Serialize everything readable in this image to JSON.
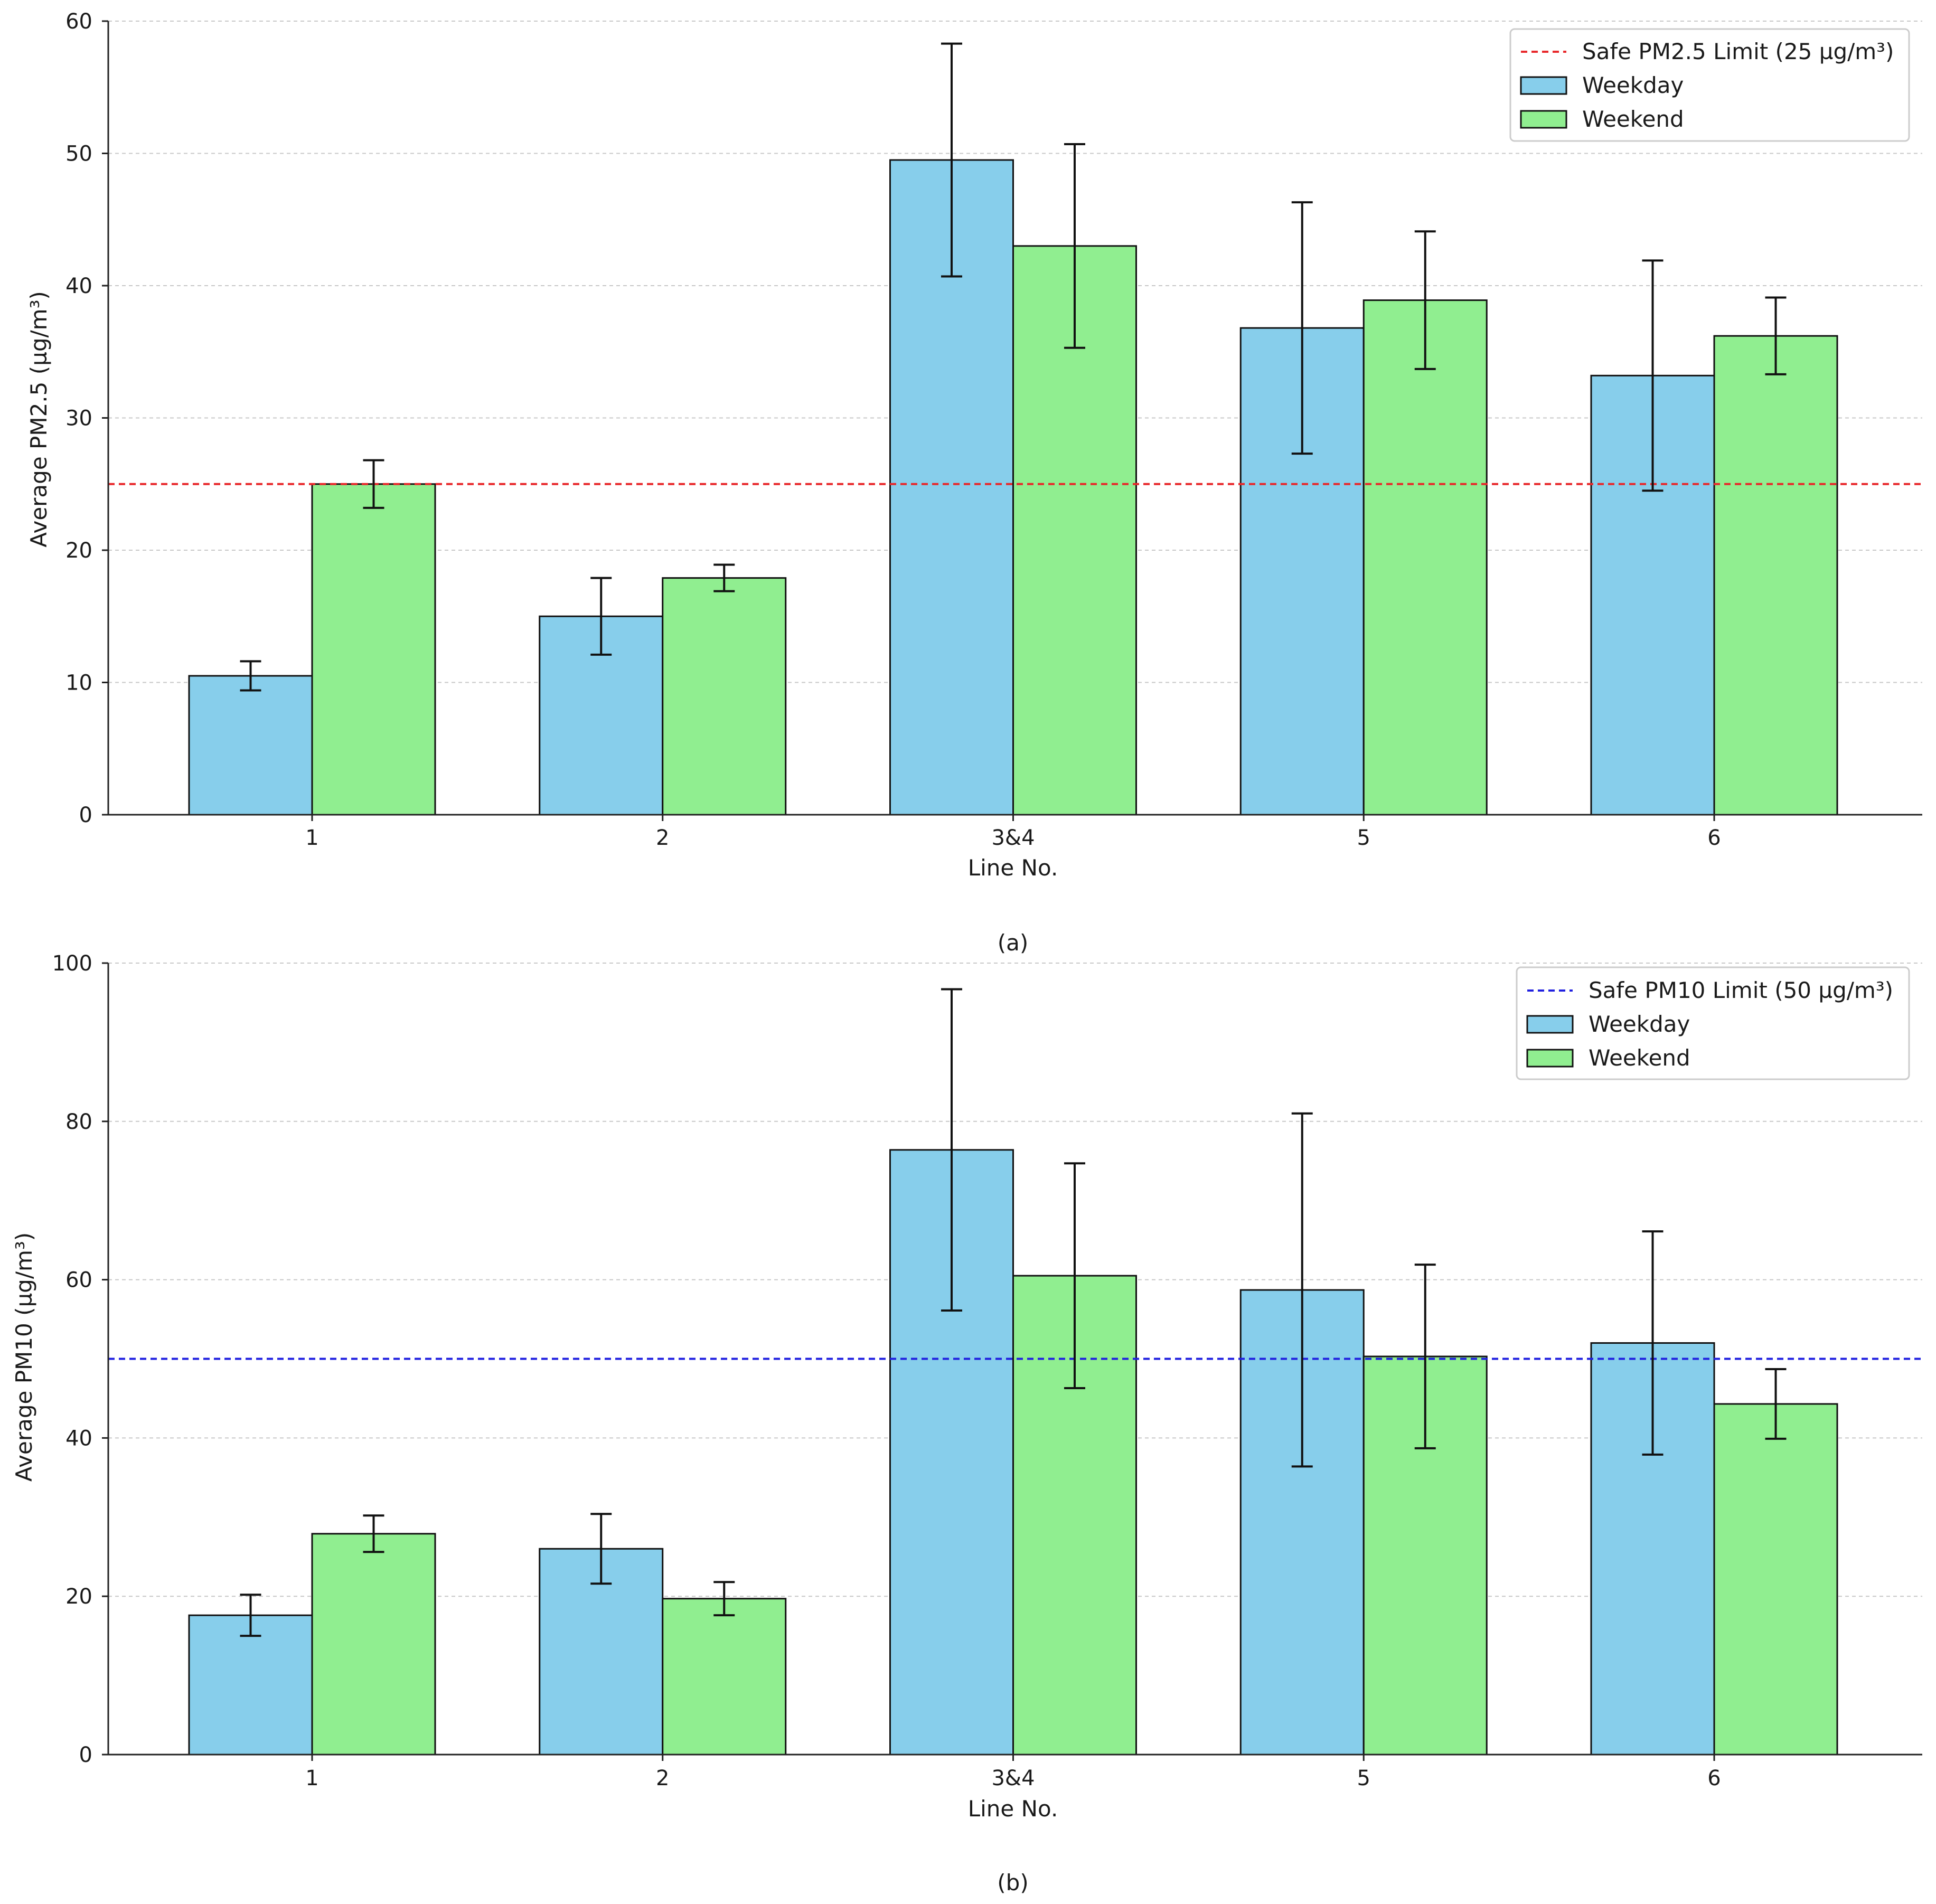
{
  "chart_data": [
    {
      "type": "bar",
      "panel": "(a)",
      "caption": "(a)",
      "categories": [
        "1",
        "2",
        "3&4",
        "5",
        "6"
      ],
      "series": [
        {
          "name": "Weekday",
          "color": "#87CEEB",
          "values": [
            10.5,
            15.0,
            49.5,
            36.8,
            33.2
          ],
          "errors": [
            1.1,
            2.9,
            8.8,
            9.5,
            8.7
          ]
        },
        {
          "name": "Weekend",
          "color": "#90EE90",
          "values": [
            25.0,
            17.9,
            43.0,
            38.9,
            36.2
          ],
          "errors": [
            1.8,
            1.0,
            7.7,
            5.2,
            2.9
          ]
        }
      ],
      "xlabel": "Line No.",
      "ylabel": "Average PM2.5 (µg/m³)",
      "ylim": [
        0,
        60
      ],
      "yticks": [
        "0",
        "10",
        "20",
        "30",
        "40",
        "50",
        "60"
      ],
      "grid": "horizontal dashed",
      "legend_position": "top-right",
      "reference_line": {
        "value": 25,
        "label": "Safe PM2.5 Limit (25 µg/m³)",
        "color": "#E8282B"
      }
    },
    {
      "type": "bar",
      "panel": "(b)",
      "caption": "(b)",
      "categories": [
        "1",
        "2",
        "3&4",
        "5",
        "6"
      ],
      "series": [
        {
          "name": "Weekday",
          "color": "#87CEEB",
          "values": [
            17.6,
            26.0,
            76.4,
            58.7,
            52.0
          ],
          "errors": [
            2.6,
            4.4,
            20.3,
            22.3,
            14.1
          ]
        },
        {
          "name": "Weekend",
          "color": "#90EE90",
          "values": [
            27.9,
            19.7,
            60.5,
            50.3,
            44.3
          ],
          "errors": [
            2.3,
            2.1,
            14.2,
            11.6,
            4.4
          ]
        }
      ],
      "xlabel": "Line No.",
      "ylabel": "Average PM10 (µg/m³)",
      "ylim": [
        0,
        100
      ],
      "yticks": [
        "0",
        "20",
        "40",
        "60",
        "80",
        "100"
      ],
      "grid": "horizontal dashed",
      "legend_position": "top-right",
      "reference_line": {
        "value": 50,
        "label": "Safe PM10 Limit (50 µg/m³)",
        "color": "#1F1FE0"
      }
    }
  ]
}
